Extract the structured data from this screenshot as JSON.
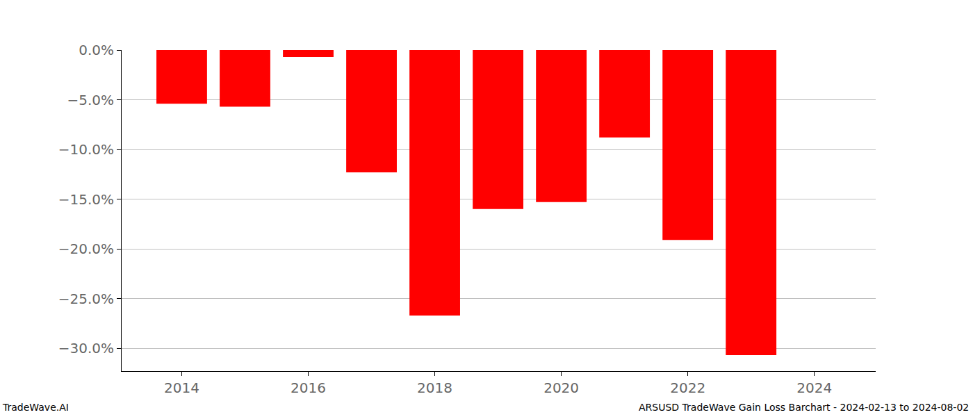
{
  "chart_data": {
    "type": "bar",
    "x": [
      2014,
      2015,
      2016,
      2017,
      2018,
      2019,
      2020,
      2021,
      2022,
      2023
    ],
    "values": [
      -5.4,
      -5.7,
      -0.7,
      -12.3,
      -26.7,
      -16.0,
      -15.3,
      -8.8,
      -19.1,
      -30.7
    ],
    "color": "#ff0000",
    "xlim": [
      2013.05,
      2024.97
    ],
    "xticks": [
      2014,
      2016,
      2018,
      2020,
      2022,
      2024
    ],
    "ylim": [
      -32.3,
      0
    ],
    "yticks": [
      {
        "value": 0,
        "label": "0.0%"
      },
      {
        "value": -5,
        "label": "−5.0%"
      },
      {
        "value": -10,
        "label": "−10.0%"
      },
      {
        "value": -15,
        "label": "−15.0%"
      },
      {
        "value": -20,
        "label": "−20.0%"
      },
      {
        "value": -25,
        "label": "−25.0%"
      },
      {
        "value": -30,
        "label": "−30.0%"
      }
    ],
    "grid": true,
    "annotations": [
      "TradeWave.AI",
      "ARSUSD TradeWave Gain Loss Barchart - 2024-02-13 to 2024-08-02"
    ]
  }
}
